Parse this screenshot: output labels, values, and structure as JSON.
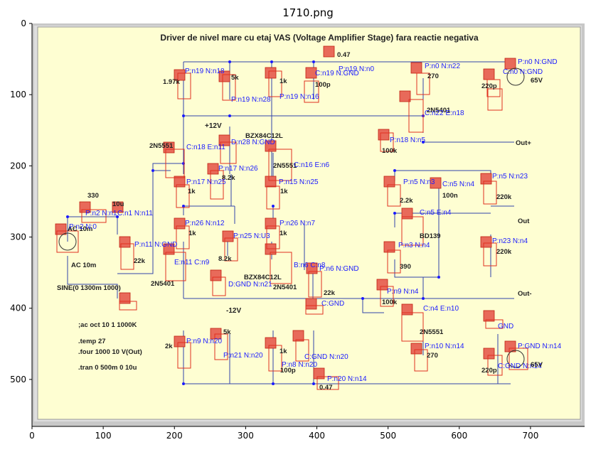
{
  "figure": {
    "title": "1710.png",
    "heading": "Driver de nivel mare cu etaj VAS (Voltage Amplifier Stage) fara reactie negativa",
    "x_ticks": [
      "0",
      "100",
      "200",
      "300",
      "400",
      "500",
      "600",
      "700"
    ],
    "y_ticks": [
      "0",
      "100",
      "200",
      "300",
      "400",
      "500"
    ]
  },
  "components": [
    {
      "id": "R14",
      "tag": "R",
      "value": "0.47",
      "nodes": "P:n19 N:n0"
    },
    {
      "id": "R16",
      "tag": "R",
      "value": "1.97k",
      "nodes": "P:n19 N:n18"
    },
    {
      "id": "R1b",
      "tag": "R",
      "value": "5k",
      "nodes": "P:n19 N:n28"
    },
    {
      "id": "R11",
      "tag": "R",
      "value": "1k",
      "nodes": "P:n19 N:n16"
    },
    {
      "id": "C3",
      "tag": "C",
      "value": "100p",
      "nodes": "C:n19 N:GND"
    },
    {
      "id": "R1",
      "tag": "R",
      "value": "270",
      "nodes": "P:n0 N:n22"
    },
    {
      "id": "C7",
      "tag": "C",
      "value": "220p",
      "nodes": "C:n0 N:GND"
    },
    {
      "id": "V2",
      "tag": "V",
      "value": "65V",
      "nodes": "P:n0 N:GND"
    },
    {
      "id": "Q5",
      "tag": "P",
      "value": "2N5401",
      "nodes": "C:n22 E:n18"
    },
    {
      "id": "D1",
      "tag": "D",
      "value": "BZX84C12L",
      "nodes": "D:n28 N:GND"
    },
    {
      "id": "Q7",
      "tag": "N",
      "value": "2N5551",
      "nodes": "C:n16 E:n6"
    },
    {
      "id": "R27",
      "tag": "R",
      "value": "100k",
      "nodes": "P:n18 N:n5"
    },
    {
      "id": "Q6",
      "tag": "N",
      "value": "2N5551",
      "nodes": "C:n18 E:n11"
    },
    {
      "id": "R13",
      "tag": "R",
      "value": "8.2k",
      "nodes": "P:n17 N:n26"
    },
    {
      "id": "R18",
      "tag": "R",
      "value": "1k",
      "nodes": "P:n17 N:n25"
    },
    {
      "id": "R19",
      "tag": "R",
      "value": "1k",
      "nodes": "P:n15 N:n25"
    },
    {
      "id": "R4",
      "tag": "R",
      "value": "2.2k",
      "nodes": "P:n5 N:n3"
    },
    {
      "id": "C2",
      "tag": "C",
      "value": "100n",
      "nodes": "C:n5 N:n4"
    },
    {
      "id": "R29",
      "tag": "R",
      "value": "220k",
      "nodes": "P:n5 N:n23"
    },
    {
      "id": "R2",
      "tag": "R",
      "value": "330",
      "nodes": "P:n2 N:n1"
    },
    {
      "id": "C1",
      "tag": "C",
      "value": "10u",
      "nodes": "C:n1 N:n11"
    },
    {
      "id": "V1",
      "tag": "V",
      "value": "AC 10m",
      "nodes": "P:n2 N:0"
    },
    {
      "id": "R7",
      "tag": "R",
      "value": "22k",
      "nodes": "P:n11 N:GND"
    },
    {
      "id": "R21",
      "tag": "R",
      "value": "1k",
      "nodes": "P:n26 N:n12"
    },
    {
      "id": "R12",
      "tag": "R",
      "value": "8.2k",
      "nodes": "P:n25 N:U3"
    },
    {
      "id": "R20",
      "tag": "R",
      "value": "1k",
      "nodes": "P:n26 N:n7"
    },
    {
      "id": "Q2",
      "tag": "N",
      "value": "BD139",
      "nodes": "C:n5 E:n4"
    },
    {
      "id": "R3",
      "tag": "R",
      "value": "390",
      "nodes": "P:n3 N:n4"
    },
    {
      "id": "R30",
      "tag": "R",
      "value": "220k",
      "nodes": "P:n23 N:n4"
    },
    {
      "id": "Q3",
      "tag": "P",
      "value": "2N5401",
      "nodes": "E:n11 C:n9"
    },
    {
      "id": "D2",
      "tag": "D",
      "value": "BZX84C12L",
      "nodes": "D:GND N:n21"
    },
    {
      "id": "Q4",
      "tag": "P",
      "value": "2N5401",
      "nodes": "B:n6 C:n8"
    },
    {
      "id": "R8",
      "tag": "R",
      "value": "22k",
      "nodes": "P:n6 N:GND"
    },
    {
      "id": "C8",
      "tag": "C",
      "value": "",
      "nodes": "C:GND"
    },
    {
      "id": "R28",
      "tag": "R",
      "value": "100k",
      "nodes": "P:n9 N:n4"
    },
    {
      "id": "Q1",
      "tag": "N",
      "value": "2N5551",
      "nodes": "C:n4 E:n10"
    },
    {
      "id": "G1",
      "tag": "G",
      "value": "",
      "nodes": "GND"
    },
    {
      "id": "R6",
      "tag": "R",
      "value": "2k",
      "nodes": "P:n9 N:n20"
    },
    {
      "id": "R17",
      "tag": "R",
      "value": "5k",
      "nodes": "P:n21 N:n20"
    },
    {
      "id": "R5",
      "tag": "R",
      "value": "1k",
      "nodes": "P:n8 N:n20"
    },
    {
      "id": "C4",
      "tag": "C",
      "value": "100p",
      "nodes": "C:GND N:n20"
    },
    {
      "id": "R15",
      "tag": "R",
      "value": "0.47",
      "nodes": "P:n20 N:n14"
    },
    {
      "id": "R9",
      "tag": "R",
      "value": "270",
      "nodes": "P:n10 N:n14"
    },
    {
      "id": "C6",
      "tag": "C",
      "value": "220p",
      "nodes": "C:GND N:n14"
    },
    {
      "id": "V3",
      "tag": "V",
      "value": "65V",
      "nodes": "P:GND N:n14"
    }
  ],
  "rails": {
    "pos": "+12V",
    "neg": "-12V"
  },
  "outputs": [
    "Out+",
    "Out",
    "Out-"
  ],
  "source": "SINE(0 1300m 1000)",
  "spice": [
    ";ac oct 10 1 1000K",
    ".temp 27",
    ".four 1000 10 V(Out)",
    ".tran 0 500m 0 10u"
  ],
  "colors": {
    "panel": "#fefed2",
    "component": "#e04030",
    "wire": "#3344aa",
    "node_label": "#1a1aff"
  }
}
